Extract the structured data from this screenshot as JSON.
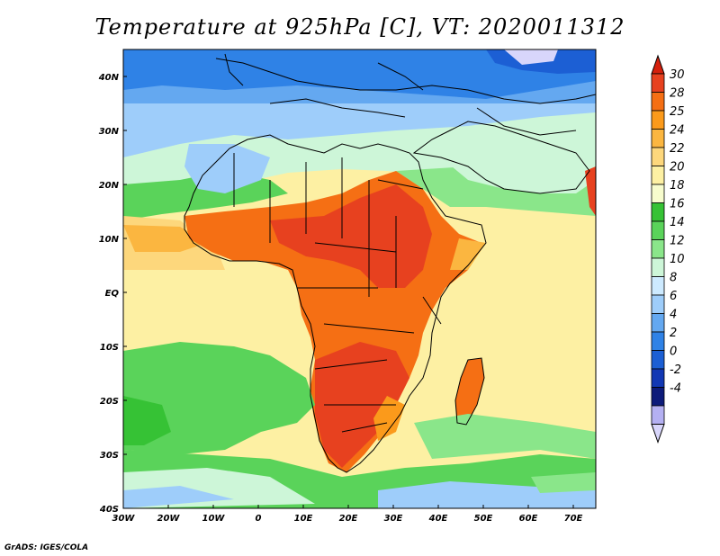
{
  "title": "Temperature at 925hPa [C], VT: 2020011312",
  "credit": "GrADS: IGES/COLA",
  "map": {
    "projection": "lat-lon",
    "lon_range": [
      -30,
      75
    ],
    "lat_range": [
      -40,
      45
    ],
    "lon_ticks": [
      "30W",
      "20W",
      "10W",
      "0",
      "10E",
      "20E",
      "30E",
      "40E",
      "50E",
      "60E",
      "70E"
    ],
    "lon_tick_values": [
      -30,
      -20,
      -10,
      0,
      10,
      20,
      30,
      40,
      50,
      60,
      70
    ],
    "lat_ticks": [
      "40N",
      "30N",
      "20N",
      "10N",
      "EQ",
      "10S",
      "20S",
      "30S",
      "40S"
    ],
    "lat_tick_values": [
      40,
      30,
      20,
      10,
      0,
      -10,
      -20,
      -30,
      -40
    ]
  },
  "colorbar": {
    "labels": [
      "30",
      "28",
      "25",
      "24",
      "22",
      "20",
      "18",
      "16",
      "14",
      "12",
      "10",
      "8",
      "6",
      "4",
      "2",
      "0",
      "-2",
      "-4"
    ],
    "colors": [
      "#e7411f",
      "#f56f14",
      "#fb9a1b",
      "#fbb640",
      "#fdd77c",
      "#fdf0a3",
      "#f7fccd",
      "#36c235",
      "#5ad35a",
      "#8ae68a",
      "#cdf6d8",
      "#cdeaff",
      "#9ecdfa",
      "#64a8f0",
      "#2f82e6",
      "#1c5fd4",
      "#1238b4",
      "#0d1b7a",
      "#b4b0f2"
    ],
    "over_color": "#d5200d",
    "under_color": "#d8d6fb"
  }
}
